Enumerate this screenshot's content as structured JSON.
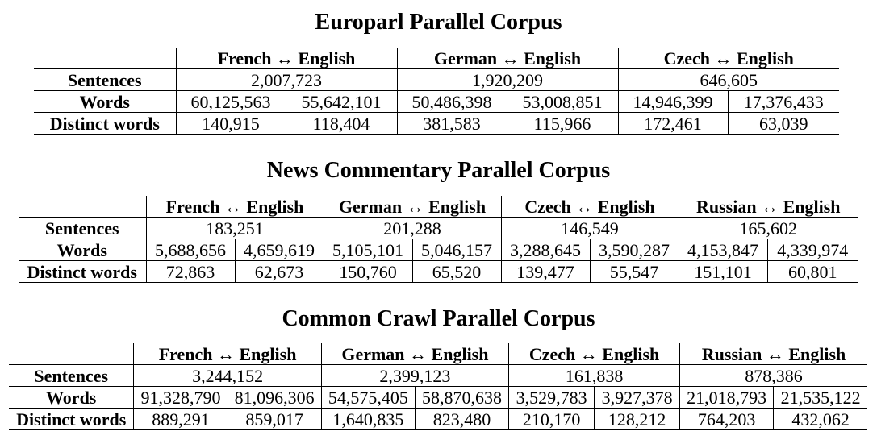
{
  "tables": [
    {
      "title": "Europarl Parallel Corpus",
      "pairs": [
        "French ↔ English",
        "German ↔ English",
        "Czech ↔ English"
      ],
      "row_labels": [
        "Sentences",
        "Words",
        "Distinct words"
      ],
      "sentences": [
        "2,007,723",
        "1,920,209",
        "646,605"
      ],
      "words": [
        "60,125,563",
        "55,642,101",
        "50,486,398",
        "53,008,851",
        "14,946,399",
        "17,376,433"
      ],
      "distinct": [
        "140,915",
        "118,404",
        "381,583",
        "115,966",
        "172,461",
        "63,039"
      ]
    },
    {
      "title": "News Commentary Parallel Corpus",
      "pairs": [
        "French ↔ English",
        "German ↔ English",
        "Czech ↔ English",
        "Russian ↔ English"
      ],
      "row_labels": [
        "Sentences",
        "Words",
        "Distinct words"
      ],
      "sentences": [
        "183,251",
        "201,288",
        "146,549",
        "165,602"
      ],
      "words": [
        "5,688,656",
        "4,659,619",
        "5,105,101",
        "5,046,157",
        "3,288,645",
        "3,590,287",
        "4,153,847",
        "4,339,974"
      ],
      "distinct": [
        "72,863",
        "62,673",
        "150,760",
        "65,520",
        "139,477",
        "55,547",
        "151,101",
        "60,801"
      ]
    },
    {
      "title": "Common Crawl Parallel Corpus",
      "pairs": [
        "French ↔ English",
        "German ↔ English",
        "Czech ↔ English",
        "Russian ↔ English"
      ],
      "row_labels": [
        "Sentences",
        "Words",
        "Distinct words"
      ],
      "sentences": [
        "3,244,152",
        "2,399,123",
        "161,838",
        "878,386"
      ],
      "words": [
        "91,328,790",
        "81,096,306",
        "54,575,405",
        "58,870,638",
        "3,529,783",
        "3,927,378",
        "21,018,793",
        "21,535,122"
      ],
      "distinct": [
        "889,291",
        "859,017",
        "1,640,835",
        "823,480",
        "210,170",
        "128,212",
        "764,203",
        "432,062"
      ]
    }
  ]
}
